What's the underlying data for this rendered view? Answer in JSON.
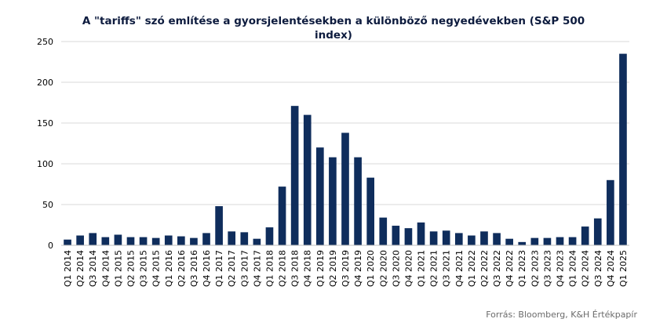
{
  "chart_data": {
    "type": "bar",
    "title_line1": "A \"tariffs\" szó említése a gyorsjelentésekben a különböző negyedévekben (S&P 500",
    "title_line2": "index)",
    "xlabel": "",
    "ylabel": "",
    "ylim": [
      0,
      250
    ],
    "yticks": [
      0,
      50,
      100,
      150,
      200,
      250
    ],
    "grid": true,
    "legend": "none",
    "bar_color": "#0f2d5c",
    "categories": [
      "Q1 2014",
      "Q2 2014",
      "Q3 2014",
      "Q4 2014",
      "Q1 2015",
      "Q2 2015",
      "Q3 2015",
      "Q4 2015",
      "Q1 2016",
      "Q2 2016",
      "Q3 2016",
      "Q4 2016",
      "Q1 2017",
      "Q2 2017",
      "Q3 2017",
      "Q4 2017",
      "Q1 2018",
      "Q2 2018",
      "Q3 2018",
      "Q4 2018",
      "Q1 2019",
      "Q2 2019",
      "Q3 2019",
      "Q4 2019",
      "Q1 2020",
      "Q2 2020",
      "Q3 2020",
      "Q4 2020",
      "Q1 2021",
      "Q2 2021",
      "Q3 2021",
      "Q4 2021",
      "Q1 2022",
      "Q2 2022",
      "Q3 2022",
      "Q4 2022",
      "Q1 2023",
      "Q2 2023",
      "Q3 2023",
      "Q4 2023",
      "Q1 2024",
      "Q2 2024",
      "Q3 2024",
      "Q4 2024",
      "Q1 2025"
    ],
    "values": [
      7,
      12,
      15,
      10,
      13,
      10,
      10,
      9,
      12,
      11,
      9,
      15,
      48,
      17,
      16,
      8,
      22,
      72,
      171,
      160,
      120,
      108,
      138,
      108,
      83,
      34,
      24,
      21,
      28,
      17,
      18,
      15,
      12,
      17,
      15,
      8,
      4,
      9,
      9,
      10,
      10,
      23,
      33,
      80,
      235
    ]
  },
  "source": "Forrás: Bloomberg, K&H Értékpapír"
}
